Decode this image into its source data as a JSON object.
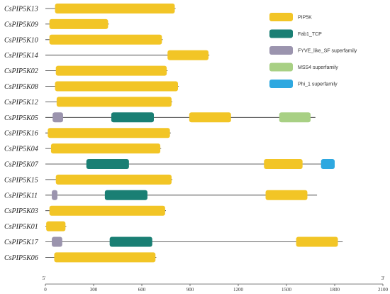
{
  "chart_data": {
    "type": "gene-domain-map",
    "x_axis": {
      "range": [
        0,
        2100
      ],
      "ticks": [
        0,
        300,
        600,
        900,
        1200,
        1500,
        1800,
        2100
      ],
      "tick_labels": [
        "0",
        "300",
        "600",
        "900",
        "1200",
        "1500",
        "1800",
        "2100"
      ],
      "start_label": "5'",
      "end_label": "3'"
    },
    "domain_types": [
      {
        "key": "pip5k",
        "name": "PIP5K",
        "color": "#F2C526"
      },
      {
        "key": "fab1",
        "name": "Fab1_TCP",
        "color": "#1A7F74"
      },
      {
        "key": "fyve",
        "name": "FYVE_like_SF superfamily",
        "color": "#9B94AE"
      },
      {
        "key": "mss4",
        "name": "MSS4 superfamily",
        "color": "#A8D084"
      },
      {
        "key": "phi1",
        "name": "Phi_1 superfamily",
        "color": "#2EA8E0"
      }
    ],
    "genes": [
      {
        "name": "CsPIP5K13",
        "length": 810,
        "domains": [
          {
            "type": "pip5k",
            "start": 60,
            "end": 805
          }
        ]
      },
      {
        "name": "CsPIP5K09",
        "length": 395,
        "domains": [
          {
            "type": "pip5k",
            "start": 25,
            "end": 390
          }
        ]
      },
      {
        "name": "CsPIP5K10",
        "length": 730,
        "domains": [
          {
            "type": "pip5k",
            "start": 25,
            "end": 725
          }
        ]
      },
      {
        "name": "CsPIP5K14",
        "length": 1020,
        "domains": [
          {
            "type": "pip5k",
            "start": 760,
            "end": 1015
          }
        ]
      },
      {
        "name": "CsPIP5K02",
        "length": 760,
        "domains": [
          {
            "type": "pip5k",
            "start": 65,
            "end": 755
          }
        ]
      },
      {
        "name": "CsPIP5K08",
        "length": 830,
        "domains": [
          {
            "type": "pip5k",
            "start": 60,
            "end": 825
          }
        ]
      },
      {
        "name": "CsPIP5K12",
        "length": 790,
        "domains": [
          {
            "type": "pip5k",
            "start": 70,
            "end": 785
          }
        ]
      },
      {
        "name": "CsPIP5K05",
        "length": 1680,
        "domains": [
          {
            "type": "fyve",
            "start": 45,
            "end": 110
          },
          {
            "type": "fab1",
            "start": 410,
            "end": 675
          },
          {
            "type": "pip5k",
            "start": 895,
            "end": 1155
          },
          {
            "type": "mss4",
            "start": 1455,
            "end": 1650
          }
        ]
      },
      {
        "name": "CsPIP5K16",
        "length": 780,
        "domains": [
          {
            "type": "pip5k",
            "start": 15,
            "end": 775
          }
        ]
      },
      {
        "name": "CsPIP5K04",
        "length": 720,
        "domains": [
          {
            "type": "pip5k",
            "start": 35,
            "end": 715
          }
        ]
      },
      {
        "name": "CsPIP5K07",
        "length": 1800,
        "domains": [
          {
            "type": "fab1",
            "start": 255,
            "end": 520
          },
          {
            "type": "pip5k",
            "start": 1360,
            "end": 1600
          },
          {
            "type": "phi1",
            "start": 1715,
            "end": 1800
          }
        ]
      },
      {
        "name": "CsPIP5K15",
        "length": 790,
        "domains": [
          {
            "type": "pip5k",
            "start": 65,
            "end": 785
          }
        ]
      },
      {
        "name": "CsPIP5K11",
        "length": 1690,
        "domains": [
          {
            "type": "fyve",
            "start": 40,
            "end": 75
          },
          {
            "type": "fab1",
            "start": 370,
            "end": 635
          },
          {
            "type": "pip5k",
            "start": 1370,
            "end": 1630
          }
        ]
      },
      {
        "name": "CsPIP5K03",
        "length": 750,
        "domains": [
          {
            "type": "pip5k",
            "start": 25,
            "end": 745
          }
        ]
      },
      {
        "name": "CsPIP5K01",
        "length": 130,
        "domains": [
          {
            "type": "pip5k",
            "start": 5,
            "end": 125
          }
        ]
      },
      {
        "name": "CsPIP5K17",
        "length": 1850,
        "domains": [
          {
            "type": "fyve",
            "start": 40,
            "end": 105
          },
          {
            "type": "fab1",
            "start": 400,
            "end": 665
          },
          {
            "type": "pip5k",
            "start": 1560,
            "end": 1820
          }
        ]
      },
      {
        "name": "CsPIP5K06",
        "length": 690,
        "domains": [
          {
            "type": "pip5k",
            "start": 55,
            "end": 685
          }
        ]
      }
    ]
  }
}
